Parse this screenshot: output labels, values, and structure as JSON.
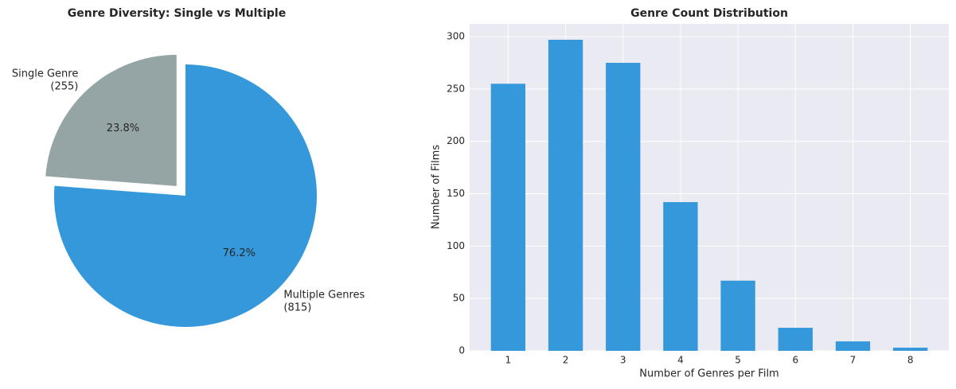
{
  "chart_data": [
    {
      "type": "pie",
      "title": "Genre Diversity: Single vs Multiple",
      "categories": [
        [
          "Single Genre",
          "(255)"
        ],
        [
          "Multiple Genres",
          "(815)"
        ]
      ],
      "values": [
        23.8,
        76.2
      ],
      "value_labels": [
        "23.8%",
        "76.2%"
      ],
      "colors": [
        "#95a5a6",
        "#3498db"
      ],
      "explode": [
        0.1,
        0
      ],
      "startangle": 90
    },
    {
      "type": "bar",
      "title": "Genre Count Distribution",
      "x": [
        1,
        2,
        3,
        4,
        5,
        6,
        7,
        8
      ],
      "values": [
        255,
        297,
        275,
        142,
        67,
        22,
        9,
        3
      ],
      "color": "#3498db",
      "xlabel": "Number of Genres per Film",
      "ylabel": "Number of Films",
      "xlim": [
        0.33,
        8.67
      ],
      "ylim": [
        0,
        312.2
      ],
      "xticks": [
        1,
        2,
        3,
        4,
        5,
        6,
        7,
        8
      ],
      "yticks": [
        0,
        50,
        100,
        150,
        200,
        250,
        300
      ],
      "grid": true
    }
  ]
}
